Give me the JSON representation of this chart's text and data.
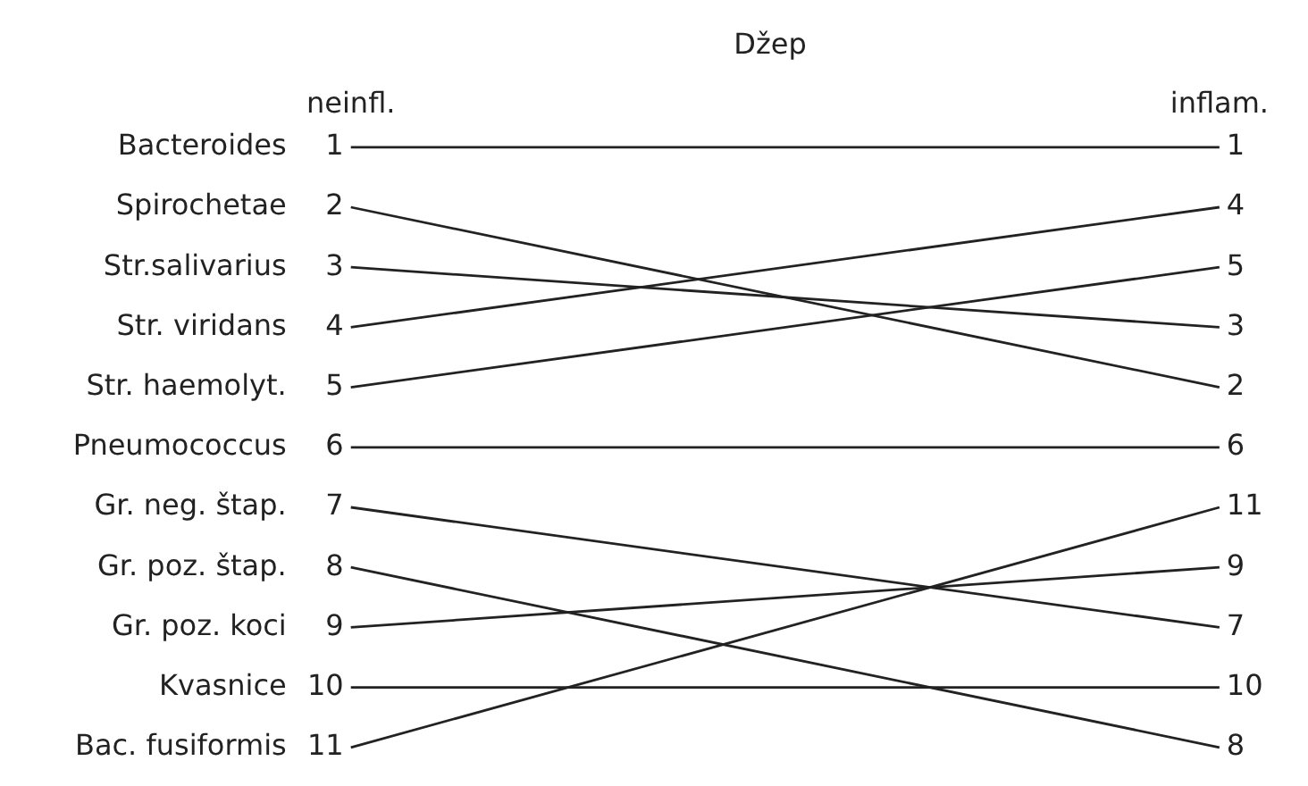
{
  "chart_data": {
    "type": "line",
    "title": "Džep",
    "categories": [
      "neinfl.",
      "inflam."
    ],
    "series": [
      {
        "name": "Bacteroides",
        "color": "#222222",
        "values": [
          1,
          1
        ]
      },
      {
        "name": "Spirochetae",
        "color": "#222222",
        "values": [
          2,
          5
        ]
      },
      {
        "name": "Str.salivarius",
        "color": "#222222",
        "values": [
          3,
          4
        ]
      },
      {
        "name": "Str. viridans",
        "color": "#222222",
        "values": [
          4,
          2
        ]
      },
      {
        "name": "Str. haemolyt.",
        "color": "#222222",
        "values": [
          5,
          3
        ]
      },
      {
        "name": "Pneumococcus",
        "color": "#222222",
        "values": [
          6,
          6
        ]
      },
      {
        "name": "Gr. neg. štap.",
        "color": "#222222",
        "values": [
          7,
          9
        ]
      },
      {
        "name": "Gr. poz. štap.",
        "color": "#222222",
        "values": [
          8,
          11
        ]
      },
      {
        "name": "Gr. poz. koci",
        "color": "#222222",
        "values": [
          9,
          8
        ]
      },
      {
        "name": "Kvasnice",
        "color": "#222222",
        "values": [
          10,
          10
        ]
      },
      {
        "name": "Bac. fusiformis",
        "color": "#222222",
        "values": [
          11,
          7
        ]
      }
    ],
    "annotations": [
      {
        "text": "1",
        "x": "inflam.",
        "y": 1
      },
      {
        "text": "4",
        "x": "inflam.",
        "y": 2
      },
      {
        "text": "5",
        "x": "inflam.",
        "y": 3
      },
      {
        "text": "3",
        "x": "inflam.",
        "y": 4
      },
      {
        "text": "2",
        "x": "inflam.",
        "y": 5
      },
      {
        "text": "6",
        "x": "inflam.",
        "y": 6
      },
      {
        "text": "11",
        "x": "inflam.",
        "y": 7
      },
      {
        "text": "9",
        "x": "inflam.",
        "y": 8
      },
      {
        "text": "7",
        "x": "inflam.",
        "y": 9
      },
      {
        "text": "10",
        "x": "inflam.",
        "y": 10
      },
      {
        "text": "8",
        "x": "inflam.",
        "y": 11
      }
    ],
    "ylim": [
      11,
      1
    ],
    "yticks": [
      1,
      2,
      3,
      4,
      5,
      6,
      7,
      8,
      9,
      10,
      11
    ],
    "grid": false,
    "legend": false,
    "marker": "none",
    "line_style": "solid"
  }
}
